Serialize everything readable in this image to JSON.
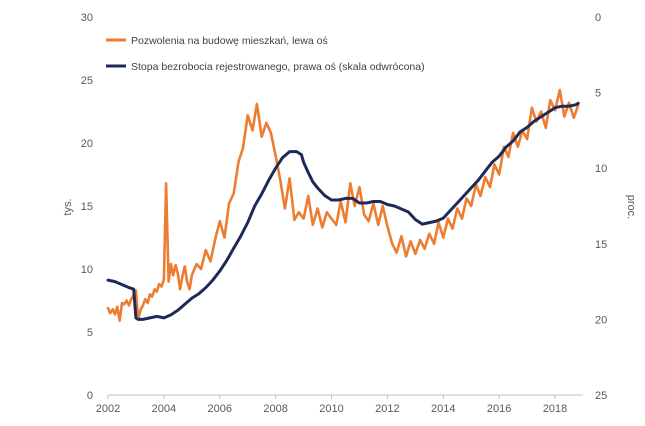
{
  "chart_data": {
    "type": "line",
    "title": "",
    "xlabel": "",
    "ylabel_left": "tys.",
    "ylabel_right": "proc.",
    "x_ticks": [
      "2002",
      "2004",
      "2006",
      "2008",
      "2010",
      "2012",
      "2014",
      "2016",
      "2018"
    ],
    "y_left_ticks": [
      "0",
      "5",
      "10",
      "15",
      "20",
      "25",
      "30"
    ],
    "y_right_ticks": [
      "0",
      "5",
      "10",
      "15",
      "20",
      "25"
    ],
    "x_range": [
      2002,
      2019
    ],
    "y_left_range": [
      0,
      30
    ],
    "y_right_range": [
      0,
      25
    ],
    "y_right_reversed": true,
    "grid": false,
    "legend_position": "top-left",
    "series": [
      {
        "name": "Pozwolenia na budowę mieszkań, lewa oś",
        "axis": "left",
        "color": "#ED7D31",
        "x": [
          2002.0,
          2002.08,
          2002.17,
          2002.25,
          2002.33,
          2002.42,
          2002.5,
          2002.58,
          2002.67,
          2002.75,
          2002.83,
          2002.92,
          2003.0,
          2003.08,
          2003.17,
          2003.25,
          2003.33,
          2003.42,
          2003.5,
          2003.58,
          2003.67,
          2003.75,
          2003.83,
          2003.92,
          2004.0,
          2004.08,
          2004.17,
          2004.25,
          2004.33,
          2004.42,
          2004.5,
          2004.58,
          2004.67,
          2004.75,
          2004.83,
          2004.92,
          2005.0,
          2005.17,
          2005.33,
          2005.5,
          2005.67,
          2005.83,
          2006.0,
          2006.17,
          2006.33,
          2006.5,
          2006.67,
          2006.83,
          2007.0,
          2007.17,
          2007.33,
          2007.5,
          2007.67,
          2007.83,
          2008.0,
          2008.17,
          2008.33,
          2008.5,
          2008.67,
          2008.83,
          2009.0,
          2009.17,
          2009.33,
          2009.5,
          2009.67,
          2009.83,
          2010.0,
          2010.17,
          2010.33,
          2010.5,
          2010.67,
          2010.83,
          2011.0,
          2011.17,
          2011.33,
          2011.5,
          2011.67,
          2011.83,
          2012.0,
          2012.17,
          2012.33,
          2012.5,
          2012.67,
          2012.83,
          2013.0,
          2013.17,
          2013.33,
          2013.5,
          2013.67,
          2013.83,
          2014.0,
          2014.17,
          2014.33,
          2014.5,
          2014.67,
          2014.83,
          2015.0,
          2015.17,
          2015.33,
          2015.5,
          2015.67,
          2015.83,
          2016.0,
          2016.17,
          2016.33,
          2016.5,
          2016.67,
          2016.83,
          2017.0,
          2017.17,
          2017.33,
          2017.5,
          2017.67,
          2017.83,
          2018.0,
          2018.17,
          2018.33,
          2018.5,
          2018.67,
          2018.83
        ],
        "values": [
          6.9,
          6.5,
          6.8,
          6.4,
          7.0,
          5.9,
          7.3,
          7.2,
          7.5,
          7.1,
          7.6,
          7.9,
          8.3,
          6.0,
          6.8,
          7.1,
          7.6,
          7.3,
          8.0,
          7.8,
          8.4,
          8.2,
          8.8,
          8.6,
          9.2,
          16.8,
          9.0,
          10.4,
          9.5,
          10.3,
          9.6,
          8.4,
          9.5,
          10.2,
          9.0,
          8.4,
          9.5,
          10.4,
          10.0,
          11.5,
          10.6,
          12.3,
          13.8,
          12.5,
          15.2,
          16.0,
          18.5,
          19.6,
          22.2,
          21.0,
          23.1,
          20.5,
          21.6,
          20.8,
          19.0,
          17.0,
          14.8,
          17.2,
          13.9,
          14.5,
          14.0,
          15.8,
          13.5,
          14.8,
          13.3,
          14.5,
          14.0,
          13.5,
          15.4,
          13.7,
          16.8,
          15.0,
          16.5,
          14.3,
          13.8,
          15.2,
          13.5,
          15.0,
          13.4,
          12.0,
          11.3,
          12.6,
          11.0,
          12.2,
          11.2,
          12.3,
          11.6,
          12.8,
          12.0,
          13.7,
          12.5,
          14.0,
          13.2,
          14.8,
          14.0,
          15.6,
          15.0,
          16.7,
          15.8,
          17.3,
          16.5,
          18.3,
          17.5,
          19.7,
          18.9,
          20.8,
          19.7,
          21.0,
          20.3,
          22.8,
          21.7,
          22.5,
          21.2,
          23.4,
          22.6,
          24.2,
          22.1,
          23.2,
          22.0,
          23.0
        ]
      },
      {
        "name": "Stopa bezrobocia rejestrowanego, prawa oś (skala odwrócona)",
        "axis": "right",
        "color": "#1F2A5C",
        "x": [
          2002.0,
          2002.25,
          2002.5,
          2002.75,
          2002.92,
          2003.0,
          2003.08,
          2003.25,
          2003.5,
          2003.75,
          2004.0,
          2004.25,
          2004.5,
          2004.75,
          2005.0,
          2005.25,
          2005.5,
          2005.75,
          2006.0,
          2006.25,
          2006.5,
          2006.75,
          2007.0,
          2007.25,
          2007.5,
          2007.75,
          2008.0,
          2008.25,
          2008.5,
          2008.75,
          2008.92,
          2009.0,
          2009.17,
          2009.33,
          2009.5,
          2009.75,
          2010.0,
          2010.25,
          2010.5,
          2010.75,
          2011.0,
          2011.25,
          2011.5,
          2011.75,
          2012.0,
          2012.25,
          2012.5,
          2012.75,
          2013.0,
          2013.25,
          2013.5,
          2013.75,
          2014.0,
          2014.25,
          2014.5,
          2014.75,
          2015.0,
          2015.25,
          2015.5,
          2015.75,
          2016.0,
          2016.25,
          2016.5,
          2016.75,
          2017.0,
          2017.25,
          2017.5,
          2017.75,
          2018.0,
          2018.25,
          2018.5,
          2018.75,
          2018.83
        ],
        "values": [
          17.4,
          17.5,
          17.7,
          17.9,
          18.0,
          19.9,
          20.0,
          20.0,
          19.9,
          19.8,
          19.9,
          19.7,
          19.4,
          19.0,
          18.6,
          18.3,
          17.9,
          17.4,
          16.8,
          16.1,
          15.3,
          14.5,
          13.6,
          12.5,
          11.7,
          10.8,
          10.0,
          9.3,
          8.9,
          8.9,
          9.1,
          9.6,
          10.3,
          10.9,
          11.3,
          11.8,
          12.1,
          12.1,
          12.0,
          12.0,
          12.3,
          12.3,
          12.2,
          12.2,
          12.4,
          12.5,
          12.7,
          12.9,
          13.4,
          13.7,
          13.6,
          13.5,
          13.3,
          12.8,
          12.3,
          11.8,
          11.3,
          10.8,
          10.2,
          9.6,
          9.2,
          8.6,
          8.2,
          7.6,
          7.3,
          6.9,
          6.6,
          6.3,
          6.0,
          5.9,
          5.9,
          5.8,
          5.7
        ]
      }
    ]
  }
}
